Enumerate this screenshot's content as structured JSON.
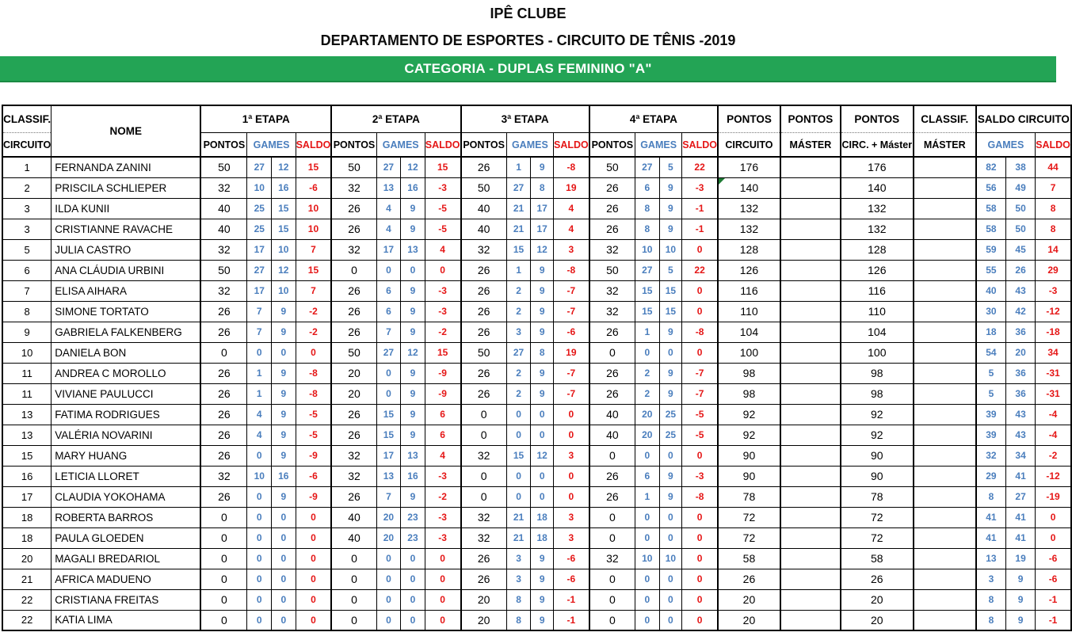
{
  "titles": {
    "club": "IPÊ CLUBE",
    "department": "DEPARTAMENTO DE ESPORTES - CIRCUITO DE TÊNIS -2019",
    "category_banner": "CATEGORIA - DUPLAS FEMININO \"A\""
  },
  "colors": {
    "banner_green": "#23A455",
    "games_blue": "#4A7EBD",
    "saldo_red": "#E51616",
    "flag_marker_green": "#1E7B34"
  },
  "table": {
    "headers": {
      "classif_line1": "CLASSIF.",
      "classif_line2": "CIRCUITO",
      "nome": "NOME",
      "etapa1": "1ª ETAPA",
      "etapa2": "2ª ETAPA",
      "etapa3": "3ª ETAPA",
      "etapa4": "4ª ETAPA",
      "sub_pontos": "PONTOS",
      "sub_games": "GAMES",
      "sub_saldo": "SALDO",
      "pontos_circuito_line1": "PONTOS",
      "pontos_circuito_line2": "CIRCUITO",
      "pontos_master_line1": "PONTOS",
      "pontos_master_line2": "MÁSTER",
      "pontos_circ_master_line1": "PONTOS",
      "pontos_circ_master_line2": "CIRC. + Máster",
      "classif_master_line1": "CLASSIF.",
      "classif_master_line2": "MÁSTER",
      "saldo_circuito": "SALDO CIRCUITO"
    },
    "rows": [
      {
        "classif": "1",
        "nome": "FERNANDA ZANINI",
        "etapas": [
          [
            "50",
            "27",
            "12",
            "15"
          ],
          [
            "50",
            "27",
            "12",
            "15"
          ],
          [
            "26",
            "1",
            "9",
            "-8"
          ],
          [
            "50",
            "27",
            "5",
            "22"
          ]
        ],
        "pontos_circuito": "176",
        "pontos_master": "",
        "pontos_circ_master": "176",
        "classif_master": "",
        "saldo_games": [
          "82",
          "38"
        ],
        "saldo": "44",
        "marker": false
      },
      {
        "classif": "2",
        "nome": "PRISCILA SCHLIEPER",
        "etapas": [
          [
            "32",
            "10",
            "16",
            "-6"
          ],
          [
            "32",
            "13",
            "16",
            "-3"
          ],
          [
            "50",
            "27",
            "8",
            "19"
          ],
          [
            "26",
            "6",
            "9",
            "-3"
          ]
        ],
        "pontos_circuito": "140",
        "pontos_master": "",
        "pontos_circ_master": "140",
        "classif_master": "",
        "saldo_games": [
          "56",
          "49"
        ],
        "saldo": "7",
        "marker": true
      },
      {
        "classif": "3",
        "nome": "ILDA KUNII",
        "etapas": [
          [
            "40",
            "25",
            "15",
            "10"
          ],
          [
            "26",
            "4",
            "9",
            "-5"
          ],
          [
            "40",
            "21",
            "17",
            "4"
          ],
          [
            "26",
            "8",
            "9",
            "-1"
          ]
        ],
        "pontos_circuito": "132",
        "pontos_master": "",
        "pontos_circ_master": "132",
        "classif_master": "",
        "saldo_games": [
          "58",
          "50"
        ],
        "saldo": "8",
        "marker": false
      },
      {
        "classif": "3",
        "nome": "CRISTIANNE RAVACHE",
        "etapas": [
          [
            "40",
            "25",
            "15",
            "10"
          ],
          [
            "26",
            "4",
            "9",
            "-5"
          ],
          [
            "40",
            "21",
            "17",
            "4"
          ],
          [
            "26",
            "8",
            "9",
            "-1"
          ]
        ],
        "pontos_circuito": "132",
        "pontos_master": "",
        "pontos_circ_master": "132",
        "classif_master": "",
        "saldo_games": [
          "58",
          "50"
        ],
        "saldo": "8",
        "marker": false
      },
      {
        "classif": "5",
        "nome": "JULIA CASTRO",
        "etapas": [
          [
            "32",
            "17",
            "10",
            "7"
          ],
          [
            "32",
            "17",
            "13",
            "4"
          ],
          [
            "32",
            "15",
            "12",
            "3"
          ],
          [
            "32",
            "10",
            "10",
            "0"
          ]
        ],
        "pontos_circuito": "128",
        "pontos_master": "",
        "pontos_circ_master": "128",
        "classif_master": "",
        "saldo_games": [
          "59",
          "45"
        ],
        "saldo": "14",
        "marker": false
      },
      {
        "classif": "6",
        "nome": "ANA CLÁUDIA URBINI",
        "etapas": [
          [
            "50",
            "27",
            "12",
            "15"
          ],
          [
            "0",
            "0",
            "0",
            "0"
          ],
          [
            "26",
            "1",
            "9",
            "-8"
          ],
          [
            "50",
            "27",
            "5",
            "22"
          ]
        ],
        "pontos_circuito": "126",
        "pontos_master": "",
        "pontos_circ_master": "126",
        "classif_master": "",
        "saldo_games": [
          "55",
          "26"
        ],
        "saldo": "29",
        "marker": false
      },
      {
        "classif": "7",
        "nome": "ELISA AIHARA",
        "etapas": [
          [
            "32",
            "17",
            "10",
            "7"
          ],
          [
            "26",
            "6",
            "9",
            "-3"
          ],
          [
            "26",
            "2",
            "9",
            "-7"
          ],
          [
            "32",
            "15",
            "15",
            "0"
          ]
        ],
        "pontos_circuito": "116",
        "pontos_master": "",
        "pontos_circ_master": "116",
        "classif_master": "",
        "saldo_games": [
          "40",
          "43"
        ],
        "saldo": "-3",
        "marker": false
      },
      {
        "classif": "8",
        "nome": "SIMONE TORTATO",
        "etapas": [
          [
            "26",
            "7",
            "9",
            "-2"
          ],
          [
            "26",
            "6",
            "9",
            "-3"
          ],
          [
            "26",
            "2",
            "9",
            "-7"
          ],
          [
            "32",
            "15",
            "15",
            "0"
          ]
        ],
        "pontos_circuito": "110",
        "pontos_master": "",
        "pontos_circ_master": "110",
        "classif_master": "",
        "saldo_games": [
          "30",
          "42"
        ],
        "saldo": "-12",
        "marker": false
      },
      {
        "classif": "9",
        "nome": "GABRIELA FALKENBERG",
        "etapas": [
          [
            "26",
            "7",
            "9",
            "-2"
          ],
          [
            "26",
            "7",
            "9",
            "-2"
          ],
          [
            "26",
            "3",
            "9",
            "-6"
          ],
          [
            "26",
            "1",
            "9",
            "-8"
          ]
        ],
        "pontos_circuito": "104",
        "pontos_master": "",
        "pontos_circ_master": "104",
        "classif_master": "",
        "saldo_games": [
          "18",
          "36"
        ],
        "saldo": "-18",
        "marker": false
      },
      {
        "classif": "10",
        "nome": "DANIELA BON",
        "etapas": [
          [
            "0",
            "0",
            "0",
            "0"
          ],
          [
            "50",
            "27",
            "12",
            "15"
          ],
          [
            "50",
            "27",
            "8",
            "19"
          ],
          [
            "0",
            "0",
            "0",
            "0"
          ]
        ],
        "pontos_circuito": "100",
        "pontos_master": "",
        "pontos_circ_master": "100",
        "classif_master": "",
        "saldo_games": [
          "54",
          "20"
        ],
        "saldo": "34",
        "marker": false
      },
      {
        "classif": "11",
        "nome": "ANDREA C MOROLLO",
        "etapas": [
          [
            "26",
            "1",
            "9",
            "-8"
          ],
          [
            "20",
            "0",
            "9",
            "-9"
          ],
          [
            "26",
            "2",
            "9",
            "-7"
          ],
          [
            "26",
            "2",
            "9",
            "-7"
          ]
        ],
        "pontos_circuito": "98",
        "pontos_master": "",
        "pontos_circ_master": "98",
        "classif_master": "",
        "saldo_games": [
          "5",
          "36"
        ],
        "saldo": "-31",
        "marker": false
      },
      {
        "classif": "11",
        "nome": "VIVIANE PAULUCCI",
        "etapas": [
          [
            "26",
            "1",
            "9",
            "-8"
          ],
          [
            "20",
            "0",
            "9",
            "-9"
          ],
          [
            "26",
            "2",
            "9",
            "-7"
          ],
          [
            "26",
            "2",
            "9",
            "-7"
          ]
        ],
        "pontos_circuito": "98",
        "pontos_master": "",
        "pontos_circ_master": "98",
        "classif_master": "",
        "saldo_games": [
          "5",
          "36"
        ],
        "saldo": "-31",
        "marker": false
      },
      {
        "classif": "13",
        "nome": "FATIMA RODRIGUES",
        "etapas": [
          [
            "26",
            "4",
            "9",
            "-5"
          ],
          [
            "26",
            "15",
            "9",
            "6"
          ],
          [
            "0",
            "0",
            "0",
            "0"
          ],
          [
            "40",
            "20",
            "25",
            "-5"
          ]
        ],
        "pontos_circuito": "92",
        "pontos_master": "",
        "pontos_circ_master": "92",
        "classif_master": "",
        "saldo_games": [
          "39",
          "43"
        ],
        "saldo": "-4",
        "marker": false
      },
      {
        "classif": "13",
        "nome": "VALÉRIA NOVARINI",
        "etapas": [
          [
            "26",
            "4",
            "9",
            "-5"
          ],
          [
            "26",
            "15",
            "9",
            "6"
          ],
          [
            "0",
            "0",
            "0",
            "0"
          ],
          [
            "40",
            "20",
            "25",
            "-5"
          ]
        ],
        "pontos_circuito": "92",
        "pontos_master": "",
        "pontos_circ_master": "92",
        "classif_master": "",
        "saldo_games": [
          "39",
          "43"
        ],
        "saldo": "-4",
        "marker": false
      },
      {
        "classif": "15",
        "nome": "MARY HUANG",
        "etapas": [
          [
            "26",
            "0",
            "9",
            "-9"
          ],
          [
            "32",
            "17",
            "13",
            "4"
          ],
          [
            "32",
            "15",
            "12",
            "3"
          ],
          [
            "0",
            "0",
            "0",
            "0"
          ]
        ],
        "pontos_circuito": "90",
        "pontos_master": "",
        "pontos_circ_master": "90",
        "classif_master": "",
        "saldo_games": [
          "32",
          "34"
        ],
        "saldo": "-2",
        "marker": false
      },
      {
        "classif": "16",
        "nome": "LETICIA LLORET",
        "etapas": [
          [
            "32",
            "10",
            "16",
            "-6"
          ],
          [
            "32",
            "13",
            "16",
            "-3"
          ],
          [
            "0",
            "0",
            "0",
            "0"
          ],
          [
            "26",
            "6",
            "9",
            "-3"
          ]
        ],
        "pontos_circuito": "90",
        "pontos_master": "",
        "pontos_circ_master": "90",
        "classif_master": "",
        "saldo_games": [
          "29",
          "41"
        ],
        "saldo": "-12",
        "marker": false
      },
      {
        "classif": "17",
        "nome": "CLAUDIA YOKOHAMA",
        "etapas": [
          [
            "26",
            "0",
            "9",
            "-9"
          ],
          [
            "26",
            "7",
            "9",
            "-2"
          ],
          [
            "0",
            "0",
            "0",
            "0"
          ],
          [
            "26",
            "1",
            "9",
            "-8"
          ]
        ],
        "pontos_circuito": "78",
        "pontos_master": "",
        "pontos_circ_master": "78",
        "classif_master": "",
        "saldo_games": [
          "8",
          "27"
        ],
        "saldo": "-19",
        "marker": false
      },
      {
        "classif": "18",
        "nome": "ROBERTA BARROS",
        "etapas": [
          [
            "0",
            "0",
            "0",
            "0"
          ],
          [
            "40",
            "20",
            "23",
            "-3"
          ],
          [
            "32",
            "21",
            "18",
            "3"
          ],
          [
            "0",
            "0",
            "0",
            "0"
          ]
        ],
        "pontos_circuito": "72",
        "pontos_master": "",
        "pontos_circ_master": "72",
        "classif_master": "",
        "saldo_games": [
          "41",
          "41"
        ],
        "saldo": "0",
        "marker": false
      },
      {
        "classif": "18",
        "nome": "PAULA GLOEDEN",
        "etapas": [
          [
            "0",
            "0",
            "0",
            "0"
          ],
          [
            "40",
            "20",
            "23",
            "-3"
          ],
          [
            "32",
            "21",
            "18",
            "3"
          ],
          [
            "0",
            "0",
            "0",
            "0"
          ]
        ],
        "pontos_circuito": "72",
        "pontos_master": "",
        "pontos_circ_master": "72",
        "classif_master": "",
        "saldo_games": [
          "41",
          "41"
        ],
        "saldo": "0",
        "marker": false
      },
      {
        "classif": "20",
        "nome": "MAGALI BREDARIOL",
        "etapas": [
          [
            "0",
            "0",
            "0",
            "0"
          ],
          [
            "0",
            "0",
            "0",
            "0"
          ],
          [
            "26",
            "3",
            "9",
            "-6"
          ],
          [
            "32",
            "10",
            "10",
            "0"
          ]
        ],
        "pontos_circuito": "58",
        "pontos_master": "",
        "pontos_circ_master": "58",
        "classif_master": "",
        "saldo_games": [
          "13",
          "19"
        ],
        "saldo": "-6",
        "marker": false
      },
      {
        "classif": "21",
        "nome": "AFRICA MADUENO",
        "etapas": [
          [
            "0",
            "0",
            "0",
            "0"
          ],
          [
            "0",
            "0",
            "0",
            "0"
          ],
          [
            "26",
            "3",
            "9",
            "-6"
          ],
          [
            "0",
            "0",
            "0",
            "0"
          ]
        ],
        "pontos_circuito": "26",
        "pontos_master": "",
        "pontos_circ_master": "26",
        "classif_master": "",
        "saldo_games": [
          "3",
          "9"
        ],
        "saldo": "-6",
        "marker": false
      },
      {
        "classif": "22",
        "nome": "CRISTIANA FREITAS",
        "etapas": [
          [
            "0",
            "0",
            "0",
            "0"
          ],
          [
            "0",
            "0",
            "0",
            "0"
          ],
          [
            "20",
            "8",
            "9",
            "-1"
          ],
          [
            "0",
            "0",
            "0",
            "0"
          ]
        ],
        "pontos_circuito": "20",
        "pontos_master": "",
        "pontos_circ_master": "20",
        "classif_master": "",
        "saldo_games": [
          "8",
          "9"
        ],
        "saldo": "-1",
        "marker": false
      },
      {
        "classif": "22",
        "nome": "KATIA LIMA",
        "etapas": [
          [
            "0",
            "0",
            "0",
            "0"
          ],
          [
            "0",
            "0",
            "0",
            "0"
          ],
          [
            "20",
            "8",
            "9",
            "-1"
          ],
          [
            "0",
            "0",
            "0",
            "0"
          ]
        ],
        "pontos_circuito": "20",
        "pontos_master": "",
        "pontos_circ_master": "20",
        "classif_master": "",
        "saldo_games": [
          "8",
          "9"
        ],
        "saldo": "-1",
        "marker": false
      }
    ]
  }
}
